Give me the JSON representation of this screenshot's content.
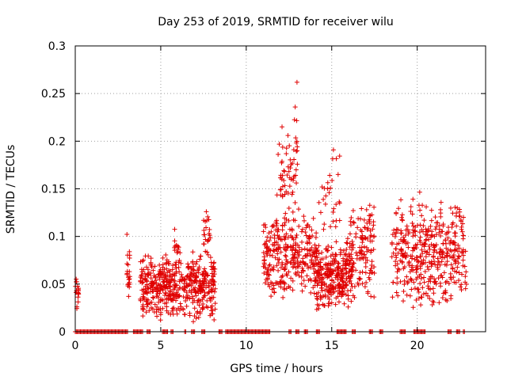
{
  "chart_data": {
    "type": "scatter",
    "title": "Day 253 of 2019, SRMTID for receiver wilu",
    "xlabel": "GPS time / hours",
    "ylabel": "SRMTID / TECUs",
    "xlim": [
      0,
      24
    ],
    "ylim": [
      0,
      0.3
    ],
    "xticks": [
      0,
      5,
      10,
      15,
      20
    ],
    "xtick_labels": [
      "0",
      "5",
      "10",
      "15",
      "20"
    ],
    "yticks": [
      0,
      0.05,
      0.1,
      0.15,
      0.2,
      0.25,
      0.3
    ],
    "ytick_labels": [
      "0",
      "0.05",
      "0.1",
      "0.15",
      "0.2",
      "0.25",
      "0.3"
    ],
    "grid": true,
    "marker": "+",
    "color": "#e00000",
    "zero_ranges": [
      [
        0,
        3.1
      ],
      [
        3.4,
        3.95
      ],
      [
        4.2,
        4.4
      ],
      [
        5.1,
        5.4
      ],
      [
        5.6,
        5.75
      ],
      [
        6.4,
        6.5
      ],
      [
        6.8,
        7.0
      ],
      [
        7.4,
        7.6
      ],
      [
        8.4,
        8.6
      ],
      [
        8.8,
        11.4
      ],
      [
        12.5,
        12.65
      ],
      [
        12.9,
        13.1
      ],
      [
        13.4,
        13.6
      ],
      [
        14.1,
        14.3
      ],
      [
        15.3,
        15.9
      ],
      [
        16.2,
        16.4
      ],
      [
        17.2,
        17.4
      ],
      [
        17.8,
        18.0
      ],
      [
        19.0,
        19.3
      ],
      [
        19.8,
        20.5
      ],
      [
        21.8,
        22.0
      ],
      [
        22.3,
        22.5
      ],
      [
        22.7,
        22.8
      ]
    ],
    "clusters": [
      {
        "x": [
          0.0,
          0.2
        ],
        "y": [
          0.02,
          0.06
        ],
        "n": 18
      },
      {
        "x": [
          3.0,
          3.2
        ],
        "y": [
          0.02,
          0.105
        ],
        "n": 22
      },
      {
        "x": [
          3.8,
          8.2
        ],
        "y": [
          0.01,
          0.085
        ],
        "n": 520
      },
      {
        "x": [
          5.8,
          6.2
        ],
        "y": [
          0.06,
          0.11
        ],
        "n": 15
      },
      {
        "x": [
          7.5,
          7.9
        ],
        "y": [
          0.07,
          0.13
        ],
        "n": 22
      },
      {
        "x": [
          11.0,
          14.1
        ],
        "y": [
          0.03,
          0.13
        ],
        "n": 300
      },
      {
        "x": [
          11.8,
          13.1
        ],
        "y": [
          0.1,
          0.225
        ],
        "n": 60
      },
      {
        "x": [
          12.8,
          13.1
        ],
        "y": [
          0.2,
          0.268
        ],
        "n": 4
      },
      {
        "x": [
          14.0,
          16.2
        ],
        "y": [
          0.02,
          0.1
        ],
        "n": 300
      },
      {
        "x": [
          14.2,
          15.5
        ],
        "y": [
          0.09,
          0.198
        ],
        "n": 30
      },
      {
        "x": [
          16.0,
          17.5
        ],
        "y": [
          0.03,
          0.14
        ],
        "n": 120
      },
      {
        "x": [
          18.5,
          22.9
        ],
        "y": [
          0.02,
          0.14
        ],
        "n": 420
      },
      {
        "x": [
          20.1,
          20.3
        ],
        "y": [
          0.13,
          0.155
        ],
        "n": 3
      }
    ]
  }
}
